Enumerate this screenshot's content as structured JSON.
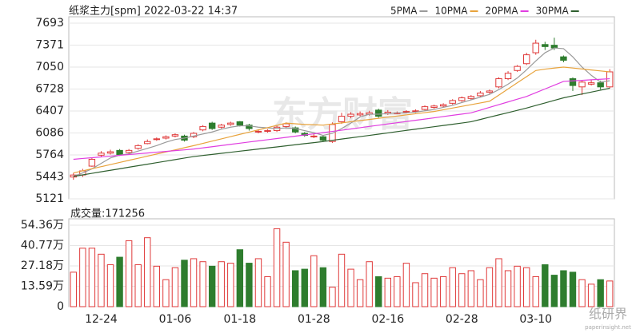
{
  "chart_data": {
    "type": "candlestick",
    "title": "纸浆主力[spm] 2022-03-22 14:37",
    "watermark": "东方财富",
    "logo": "纸研界",
    "logo_sub": "paperinsight.net",
    "up_color": "#e03a3a",
    "down_color": "#2e7d2e",
    "categories": [
      null,
      null,
      null,
      "12-24",
      null,
      null,
      null,
      null,
      null,
      null,
      null,
      "01-06",
      null,
      null,
      null,
      null,
      null,
      null,
      "01-18",
      null,
      null,
      null,
      null,
      null,
      null,
      null,
      "01-28",
      null,
      null,
      null,
      null,
      null,
      null,
      null,
      "02-16",
      null,
      null,
      null,
      null,
      null,
      null,
      null,
      "02-28",
      null,
      null,
      null,
      null,
      null,
      null,
      null,
      "03-10",
      null,
      null,
      null,
      null,
      null,
      null,
      null,
      null
    ],
    "open": [
      5440,
      5470,
      5600,
      5760,
      5790,
      5830,
      5800,
      5860,
      5930,
      5990,
      6010,
      6040,
      6040,
      6030,
      6130,
      6230,
      6170,
      6210,
      6250,
      6200,
      6100,
      6110,
      6120,
      6180,
      6160,
      6080,
      6030,
      6030,
      5960,
      6250,
      6330,
      6350,
      6360,
      6420,
      6370,
      6380,
      6390,
      6400,
      6430,
      6460,
      6480,
      6520,
      6560,
      6590,
      6630,
      6680,
      6760,
      6880,
      7000,
      7100,
      7260,
      7380,
      7370,
      7200,
      6880,
      6760,
      6800,
      6820,
      6760
    ],
    "high": [
      5500,
      5560,
      5720,
      5820,
      5840,
      5850,
      5850,
      5920,
      5990,
      6020,
      6050,
      6080,
      6060,
      6100,
      6200,
      6250,
      6220,
      6250,
      6260,
      6220,
      6140,
      6140,
      6190,
      6240,
      6180,
      6100,
      6070,
      6050,
      6240,
      6380,
      6390,
      6400,
      6410,
      6440,
      6420,
      6400,
      6420,
      6430,
      6490,
      6500,
      6520,
      6580,
      6620,
      6640,
      6700,
      6720,
      6900,
      6990,
      7080,
      7260,
      7450,
      7420,
      7480,
      7220,
      6900,
      6860,
      6860,
      6850,
      7020
    ],
    "low": [
      5400,
      5440,
      5590,
      5740,
      5770,
      5750,
      5780,
      5840,
      5920,
      5970,
      5990,
      6020,
      5960,
      6010,
      6110,
      6130,
      6150,
      6190,
      6180,
      6120,
      6080,
      6090,
      6100,
      6160,
      6080,
      6030,
      6010,
      5960,
      5940,
      6220,
      6300,
      6330,
      6340,
      6310,
      6350,
      6360,
      6370,
      6380,
      6410,
      6440,
      6460,
      6500,
      6540,
      6570,
      6610,
      6660,
      6740,
      6860,
      6980,
      7080,
      7230,
      7300,
      7300,
      7120,
      6700,
      6640,
      6780,
      6720,
      6740
    ],
    "close": [
      5470,
      5530,
      5700,
      5790,
      5810,
      5770,
      5830,
      5900,
      5960,
      6000,
      6030,
      6060,
      5980,
      6080,
      6180,
      6150,
      6200,
      6230,
      6200,
      6150,
      6110,
      6120,
      6170,
      6220,
      6100,
      6050,
      6040,
      5980,
      6210,
      6330,
      6360,
      6370,
      6380,
      6330,
      6390,
      6380,
      6400,
      6410,
      6470,
      6480,
      6500,
      6560,
      6600,
      6620,
      6670,
      6700,
      6880,
      6960,
      7060,
      7230,
      7400,
      7350,
      7330,
      7150,
      6780,
      6830,
      6820,
      6760,
      6980
    ],
    "series": [
      {
        "name": "5PMA",
        "color": "#9a9a9a",
        "values": [
          5450,
          5500,
          5560,
          5640,
          5720,
          5760,
          5780,
          5820,
          5860,
          5900,
          5950,
          5990,
          6010,
          6040,
          6070,
          6100,
          6140,
          6170,
          6190,
          6190,
          6170,
          6160,
          6150,
          6160,
          6150,
          6120,
          6090,
          6050,
          6080,
          6150,
          6230,
          6320,
          6360,
          6360,
          6370,
          6380,
          6380,
          6390,
          6410,
          6430,
          6460,
          6490,
          6530,
          6570,
          6610,
          6650,
          6720,
          6800,
          6890,
          7010,
          7140,
          7260,
          7330,
          7320,
          7200,
          7050,
          6930,
          6830,
          6850
        ]
      },
      {
        "name": "10PMA",
        "color": "#e8a33c",
        "values": [
          5500,
          5531,
          5562,
          5592,
          5623,
          5654,
          5685,
          5715,
          5746,
          5777,
          5808,
          5838,
          5869,
          5900,
          5933,
          5966,
          5999,
          6032,
          6065,
          6098,
          6131,
          6164,
          6197,
          6230,
          6220,
          6210,
          6205,
          6200,
          6217,
          6233,
          6250,
          6267,
          6283,
          6300,
          6317,
          6333,
          6350,
          6367,
          6383,
          6400,
          6425,
          6450,
          6475,
          6500,
          6525,
          6550,
          6640,
          6730,
          6820,
          6910,
          7000,
          7020,
          7035,
          7050,
          7036,
          7022,
          7008,
          6994,
          6980
        ]
      },
      {
        "name": "20PMA",
        "color": "#e03ee0",
        "values": [
          5700,
          5712,
          5723,
          5735,
          5746,
          5758,
          5769,
          5781,
          5792,
          5804,
          5815,
          5827,
          5838,
          5850,
          5867,
          5884,
          5901,
          5919,
          5936,
          5953,
          5970,
          5987,
          6004,
          6021,
          6039,
          6056,
          6073,
          6090,
          6108,
          6126,
          6144,
          6162,
          6181,
          6199,
          6217,
          6235,
          6253,
          6271,
          6289,
          6307,
          6326,
          6344,
          6362,
          6380,
          6420,
          6460,
          6500,
          6540,
          6580,
          6620,
          6675,
          6730,
          6785,
          6840,
          6848,
          6856,
          6864,
          6872,
          6880
        ]
      },
      {
        "name": "30PMA",
        "color": "#2f5f2f",
        "values": [
          5450,
          5472,
          5494,
          5517,
          5539,
          5561,
          5584,
          5606,
          5628,
          5651,
          5673,
          5695,
          5718,
          5740,
          5756,
          5771,
          5787,
          5803,
          5819,
          5834,
          5850,
          5866,
          5881,
          5897,
          5913,
          5929,
          5944,
          5960,
          5978,
          5996,
          6014,
          6032,
          6050,
          6068,
          6086,
          6105,
          6123,
          6141,
          6159,
          6177,
          6195,
          6213,
          6231,
          6250,
          6283,
          6317,
          6350,
          6383,
          6417,
          6450,
          6488,
          6525,
          6563,
          6600,
          6628,
          6656,
          6684,
          6712,
          6740
        ]
      }
    ],
    "ylim": [
      5121,
      7693
    ],
    "yticks": [
      5121,
      5443,
      5764,
      6086,
      6407,
      6728,
      7050,
      7371,
      7693
    ],
    "volume_label": "成交量:171256",
    "volumes": [
      230000,
      390000,
      390000,
      350000,
      280000,
      330000,
      440000,
      280000,
      460000,
      270000,
      180000,
      260000,
      310000,
      320000,
      300000,
      270000,
      300000,
      290000,
      380000,
      290000,
      320000,
      200000,
      520000,
      430000,
      240000,
      250000,
      340000,
      260000,
      130000,
      350000,
      250000,
      180000,
      300000,
      200000,
      190000,
      200000,
      290000,
      160000,
      220000,
      190000,
      200000,
      260000,
      220000,
      240000,
      180000,
      260000,
      320000,
      240000,
      270000,
      260000,
      200000,
      280000,
      210000,
      240000,
      230000,
      180000,
      150000,
      180000,
      171256
    ],
    "vlim": [
      0,
      543600
    ],
    "vticks": [
      0,
      {
        "value": 135900,
        "label": "13.59万"
      },
      {
        "value": 271800,
        "label": "27.18万"
      },
      {
        "value": 407700,
        "label": "40.77万"
      },
      {
        "value": 543600,
        "label": "54.36万"
      }
    ]
  }
}
